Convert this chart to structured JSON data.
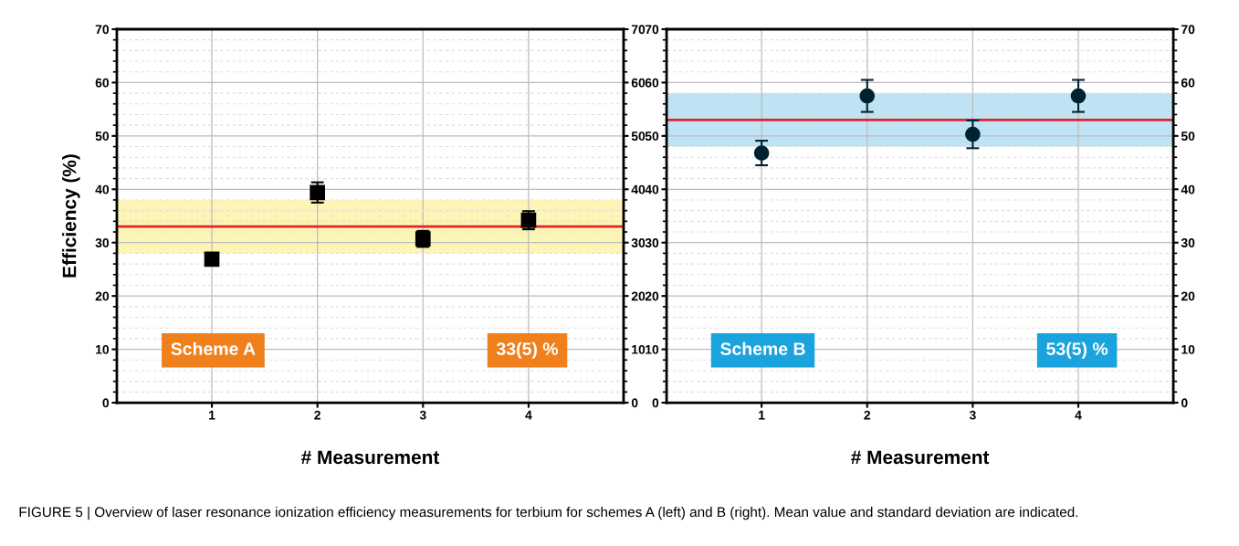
{
  "chart_data": [
    {
      "type": "scatter",
      "xlabel": "# Measurement",
      "ylabel": "Efficiency (%)",
      "x": [
        1,
        2,
        3,
        4
      ],
      "marker": "square",
      "series": [
        {
          "color": "#000000",
          "values": [
            26.9,
            39.4,
            30.7,
            34.2
          ],
          "errors": [
            0.8,
            1.9,
            1.5,
            1.7
          ]
        }
      ],
      "xlim": [
        0.1,
        4.9
      ],
      "xticks": [
        1,
        2,
        3,
        4
      ],
      "ylim": [
        0,
        70
      ],
      "yticks": [
        0,
        10,
        20,
        30,
        40,
        50,
        60,
        70
      ],
      "y2lim": [
        0,
        70
      ],
      "y2ticks": [
        0,
        10,
        20,
        30,
        40,
        50,
        60,
        70
      ],
      "grid": true,
      "ref_lines": [
        {
          "axis": "y",
          "value": 33,
          "color": "#e3212b"
        }
      ],
      "bands": [
        {
          "axis": "y",
          "from": 28,
          "to": 38,
          "color": "#fdf5b5"
        }
      ],
      "annotations": [
        "Scheme A",
        "33(5) %",
        "FIGURE 5 | Overview of laser resonance ionization efficiency measurements for terbium for schemes A (left) and B (right). Mean value and standard deviation are indicated."
      ]
    },
    {
      "type": "scatter",
      "xlabel": "# Measurement",
      "x": [
        1,
        2,
        3,
        4
      ],
      "marker": "circle",
      "series": [
        {
          "color": "#00222e",
          "values": [
            46.8,
            57.5,
            50.3,
            57.5
          ],
          "errors": [
            2.3,
            3,
            2.6,
            3
          ]
        }
      ],
      "xlim": [
        0.1,
        4.9
      ],
      "xticks": [
        1,
        2,
        3,
        4
      ],
      "ylim": [
        0,
        70
      ],
      "yticks": [
        0,
        10,
        20,
        30,
        40,
        50,
        60,
        70
      ],
      "y2lim": [
        0,
        70
      ],
      "y2ticks": [
        0,
        10,
        20,
        30,
        40,
        50,
        60,
        70
      ],
      "grid": true,
      "ref_lines": [
        {
          "axis": "y",
          "value": 53,
          "color": "#e3212b"
        }
      ],
      "bands": [
        {
          "axis": "y",
          "from": 48,
          "to": 58,
          "color": "#bde3f5"
        }
      ],
      "annotations": [
        "Scheme B",
        "53(5) %"
      ]
    }
  ]
}
